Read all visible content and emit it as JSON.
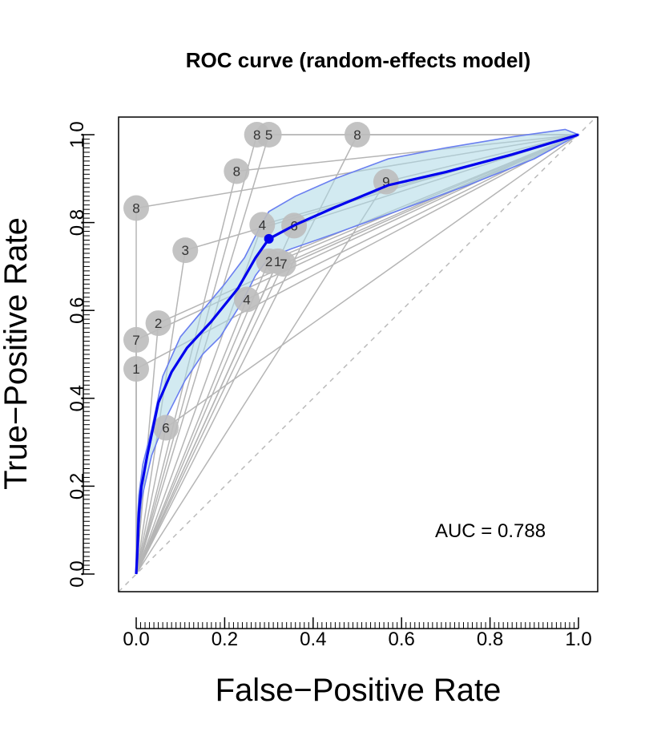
{
  "chart_data": {
    "type": "scatter",
    "title": "ROC curve (random-effects model)",
    "xlabel": "False−Positive Rate",
    "ylabel": "True−Positive Rate",
    "xlim": [
      0,
      1
    ],
    "ylim": [
      0,
      1
    ],
    "xticks": [
      "0.0",
      "0.2",
      "0.4",
      "0.6",
      "0.8",
      "1.0"
    ],
    "yticks": [
      "0.0",
      "0.2",
      "0.4",
      "0.6",
      "0.8",
      "1.0"
    ],
    "grid": false,
    "legend": "none",
    "annotation": "AUC = 0.788",
    "colors": {
      "curve": "#0000ee",
      "band_fill": "#add8e6",
      "band_edge": "#6a7ff0",
      "point": "#bdbdbd",
      "line": "#b5b5b5",
      "diagonal": "#bbbbbb"
    },
    "summary_point": {
      "fpr": 0.3,
      "tpr": 0.763
    },
    "curve": [
      [
        0,
        0
      ],
      [
        0.003,
        0.06
      ],
      [
        0.006,
        0.14
      ],
      [
        0.012,
        0.2
      ],
      [
        0.025,
        0.27
      ],
      [
        0.05,
        0.39
      ],
      [
        0.08,
        0.46
      ],
      [
        0.115,
        0.515
      ],
      [
        0.17,
        0.575
      ],
      [
        0.23,
        0.65
      ],
      [
        0.27,
        0.72
      ],
      [
        0.3,
        0.763
      ],
      [
        0.36,
        0.795
      ],
      [
        0.45,
        0.835
      ],
      [
        0.57,
        0.885
      ],
      [
        0.7,
        0.915
      ],
      [
        0.85,
        0.955
      ],
      [
        1.0,
        1.0
      ]
    ],
    "band_upper": [
      [
        0,
        0
      ],
      [
        0.002,
        0.1
      ],
      [
        0.006,
        0.18
      ],
      [
        0.015,
        0.25
      ],
      [
        0.035,
        0.33
      ],
      [
        0.06,
        0.45
      ],
      [
        0.1,
        0.54
      ],
      [
        0.15,
        0.6
      ],
      [
        0.2,
        0.66
      ],
      [
        0.245,
        0.72
      ],
      [
        0.285,
        0.8
      ],
      [
        0.3,
        0.825
      ],
      [
        0.36,
        0.86
      ],
      [
        0.45,
        0.9
      ],
      [
        0.57,
        0.945
      ],
      [
        0.7,
        0.97
      ],
      [
        0.85,
        0.995
      ],
      [
        0.97,
        1.012
      ],
      [
        1.0,
        1.0
      ]
    ],
    "band_lower": [
      [
        1.0,
        1.0
      ],
      [
        0.9,
        0.945
      ],
      [
        0.75,
        0.885
      ],
      [
        0.6,
        0.83
      ],
      [
        0.45,
        0.775
      ],
      [
        0.35,
        0.74
      ],
      [
        0.3,
        0.72
      ],
      [
        0.27,
        0.68
      ],
      [
        0.24,
        0.62
      ],
      [
        0.19,
        0.54
      ],
      [
        0.15,
        0.5
      ],
      [
        0.11,
        0.44
      ],
      [
        0.07,
        0.36
      ],
      [
        0.035,
        0.27
      ],
      [
        0.012,
        0.17
      ],
      [
        0.004,
        0.08
      ],
      [
        0,
        0
      ]
    ],
    "studies": [
      {
        "label": "8",
        "fpr": 0.273,
        "tpr": 1.0
      },
      {
        "label": "5",
        "fpr": 0.3,
        "tpr": 1.0
      },
      {
        "label": "8",
        "fpr": 0.5,
        "tpr": 1.0
      },
      {
        "label": "8",
        "fpr": 0.227,
        "tpr": 0.917
      },
      {
        "label": "9",
        "fpr": 0.565,
        "tpr": 0.893
      },
      {
        "label": "8",
        "fpr": 0.0,
        "tpr": 0.833
      },
      {
        "label": "4",
        "fpr": 0.285,
        "tpr": 0.795
      },
      {
        "label": "6",
        "fpr": 0.357,
        "tpr": 0.793
      },
      {
        "label": "3",
        "fpr": 0.111,
        "tpr": 0.737
      },
      {
        "label": "2",
        "fpr": 0.3,
        "tpr": 0.712
      },
      {
        "label": "1",
        "fpr": 0.32,
        "tpr": 0.712
      },
      {
        "label": "7",
        "fpr": 0.333,
        "tpr": 0.706
      },
      {
        "label": "4",
        "fpr": 0.25,
        "tpr": 0.625
      },
      {
        "label": "2",
        "fpr": 0.05,
        "tpr": 0.571
      },
      {
        "label": "7",
        "fpr": 0.0,
        "tpr": 0.533
      },
      {
        "label": "1",
        "fpr": 0.0,
        "tpr": 0.467
      },
      {
        "label": "6",
        "fpr": 0.067,
        "tpr": 0.333
      }
    ]
  }
}
